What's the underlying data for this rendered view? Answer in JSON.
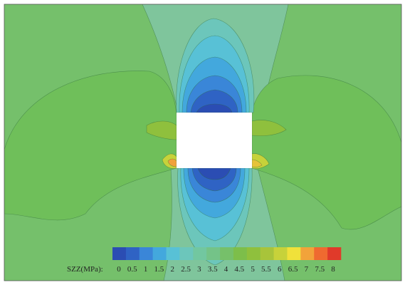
{
  "chart_data": {
    "type": "heatmap",
    "variable_label": "SZZ(MPa):",
    "colorbar": {
      "levels": [
        "0",
        "0.5",
        "1",
        "1.5",
        "2",
        "2.5",
        "3",
        "3.5",
        "4",
        "4.5",
        "5",
        "5.5",
        "6",
        "6.5",
        "7",
        "7.5",
        "8"
      ],
      "colors": [
        "#2b4db3",
        "#2f63c4",
        "#3a86d8",
        "#43a8dd",
        "#58c1d6",
        "#6cc6bb",
        "#72c7a0",
        "#74c388",
        "#76c06a",
        "#7dbe4a",
        "#8fc03d",
        "#a8c43a",
        "#c7d23a",
        "#f0e13a",
        "#f2a33a",
        "#ef6a30",
        "#e03a2a"
      ]
    }
  }
}
